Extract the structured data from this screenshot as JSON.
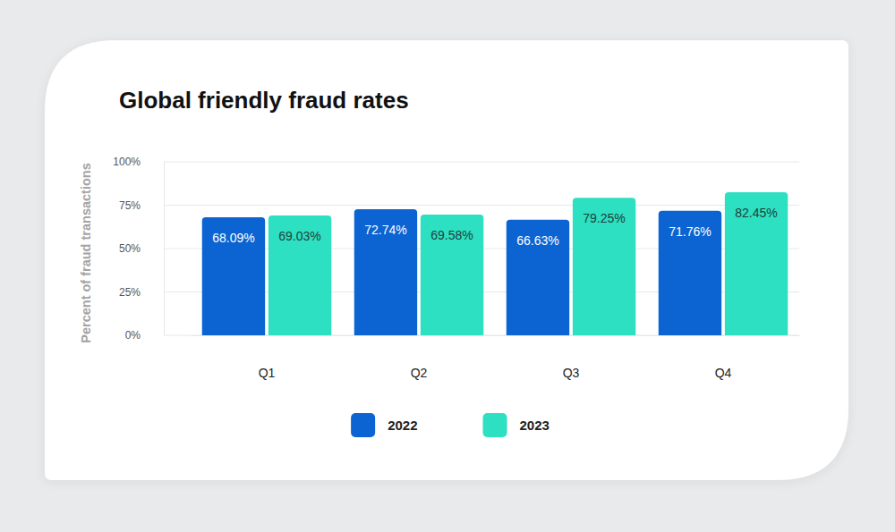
{
  "chart_data": {
    "type": "bar",
    "title": "Global friendly fraud rates",
    "y_label": "Percent of fraud transactions",
    "categories": [
      "Q1",
      "Q2",
      "Q3",
      "Q4"
    ],
    "series": [
      {
        "name": "2022",
        "color": "#0b64d1",
        "values": [
          68.09,
          72.74,
          66.63,
          71.76
        ],
        "value_labels": [
          "68.09%",
          "72.74%",
          "66.63%",
          "71.76%"
        ]
      },
      {
        "name": "2023",
        "color": "#2de0c2",
        "values": [
          69.03,
          69.58,
          79.25,
          82.45
        ],
        "value_labels": [
          "69.03%",
          "69.58%",
          "79.25%",
          "82.45%"
        ]
      }
    ],
    "ylim": [
      0,
      100
    ],
    "yticks": [
      {
        "value": 0,
        "label": "0%"
      },
      {
        "value": 25,
        "label": "25%"
      },
      {
        "value": 50,
        "label": "50%"
      },
      {
        "value": 75,
        "label": "75%"
      },
      {
        "value": 100,
        "label": "100%"
      }
    ],
    "grid": true,
    "data_labels": true,
    "legend": "bottom"
  }
}
